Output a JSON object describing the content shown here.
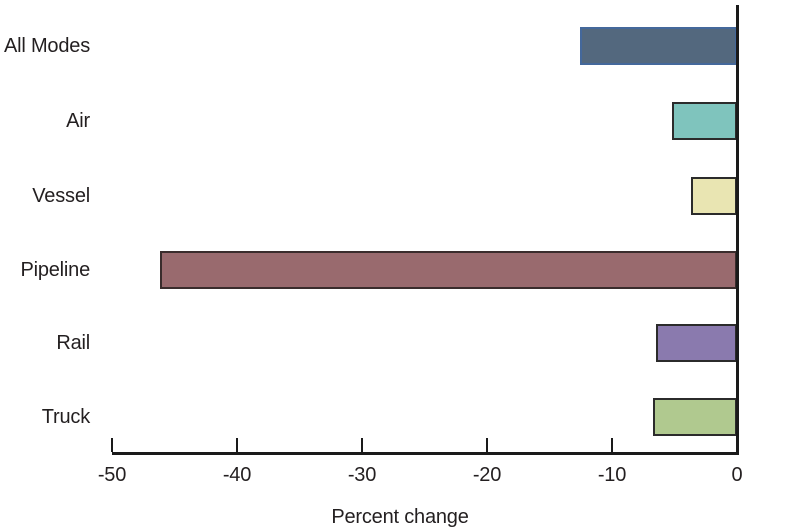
{
  "chart_data": {
    "type": "bar",
    "orientation": "horizontal",
    "title": "",
    "xlabel": "Percent change",
    "ylabel": "",
    "categories": [
      "All Modes",
      "Air",
      "Vessel",
      "Pipeline",
      "Rail",
      "Truck"
    ],
    "values": [
      -12.6,
      -5.2,
      -3.7,
      -46.2,
      -6.5,
      -6.7
    ],
    "bar_colors": [
      "#53687e",
      "#7fc4bd",
      "#e9e5b2",
      "#996a6e",
      "#8a7aae",
      "#b0c98f"
    ],
    "bar_border_colors": [
      "#44689b",
      "#2b2b2b",
      "#2b2b2b",
      "#3a2c2c",
      "#2b2b2b",
      "#2b2b2b"
    ],
    "xlim": [
      -50,
      0
    ],
    "xticks": [
      -50,
      -40,
      -30,
      -20,
      -10,
      0
    ],
    "grid": false,
    "legend": null
  },
  "colors": {
    "background": "#ffffff",
    "axis": "#1a1a1a",
    "text": "#231f20"
  }
}
